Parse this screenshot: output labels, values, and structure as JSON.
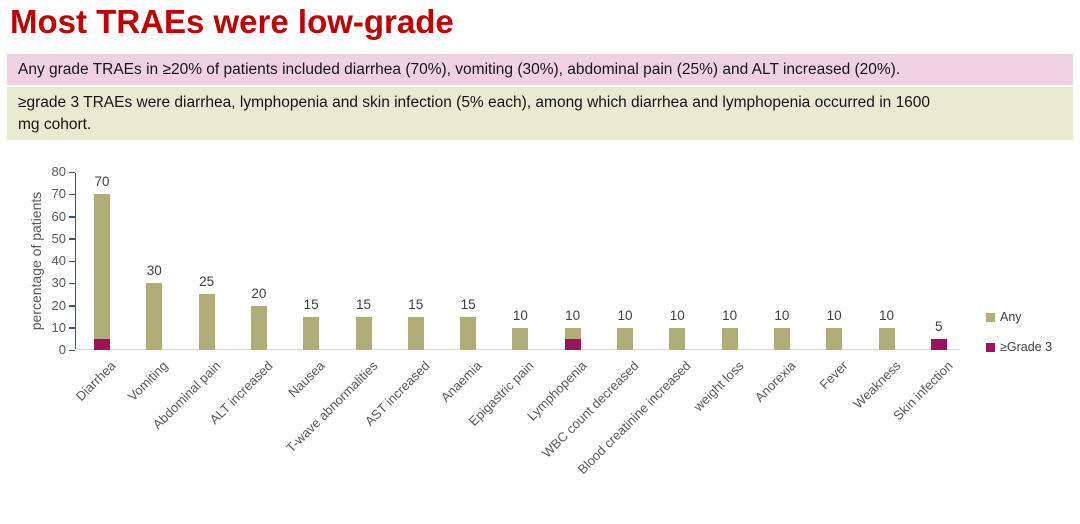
{
  "title": "Most TRAEs were low-grade",
  "notes": [
    {
      "id": "any-grade",
      "text": "Any grade TRAEs in ≥20% of patients included diarrhea (70%), vomiting (30%), abdominal pain (25%) and ALT increased (20%).",
      "bg": "#f0d1e4"
    },
    {
      "id": "grade3",
      "text": "≥grade 3 TRAEs were diarrhea, lymphopenia and skin infection (5% each), among which diarrhea and lymphopenia occurred in 1600\nmg cohort.",
      "bg": "#e9ebd0"
    }
  ],
  "colors": {
    "title_red": "#c00000",
    "bar_any": "#b0ad79",
    "bar_grade3": "#9b135c",
    "axis_navy": "#3f567a",
    "axis_baseline_gray": "#d9d9d9",
    "label_gray": "#595959",
    "value_label_gray": "#3f3f3f"
  },
  "chart_data": {
    "type": "bar",
    "title": "",
    "xlabel": "",
    "ylabel": "percentage of patients",
    "ylim": [
      0,
      80
    ],
    "ytick_step": 10,
    "grid": false,
    "legend_position": "right",
    "bar_style": "overlapped",
    "categories": [
      "Diarrhea",
      "Vomiting",
      "Abdominal pain",
      "ALT increased",
      "Nausea",
      "T-wave abnormalities",
      "AST increased",
      "Anaemia",
      "Epigastric pain",
      "Lymphopenia",
      "WBC count decreased",
      "Blood creatinine increased",
      "weight loss",
      "Anorexia",
      "Fever",
      "Weakness",
      "Skin infection"
    ],
    "series": [
      {
        "name": "Any",
        "color": "#b0ad79",
        "values": [
          70,
          30,
          25,
          20,
          15,
          15,
          15,
          15,
          10,
          10,
          10,
          10,
          10,
          10,
          10,
          10,
          5
        ]
      },
      {
        "name": "≥Grade 3",
        "color": "#9b135c",
        "values": [
          5,
          0,
          0,
          0,
          0,
          0,
          0,
          0,
          0,
          5,
          0,
          0,
          0,
          0,
          0,
          0,
          5
        ]
      }
    ],
    "bar_labels": [
      70,
      30,
      25,
      20,
      15,
      15,
      15,
      15,
      10,
      10,
      10,
      10,
      10,
      10,
      10,
      10,
      5
    ]
  }
}
